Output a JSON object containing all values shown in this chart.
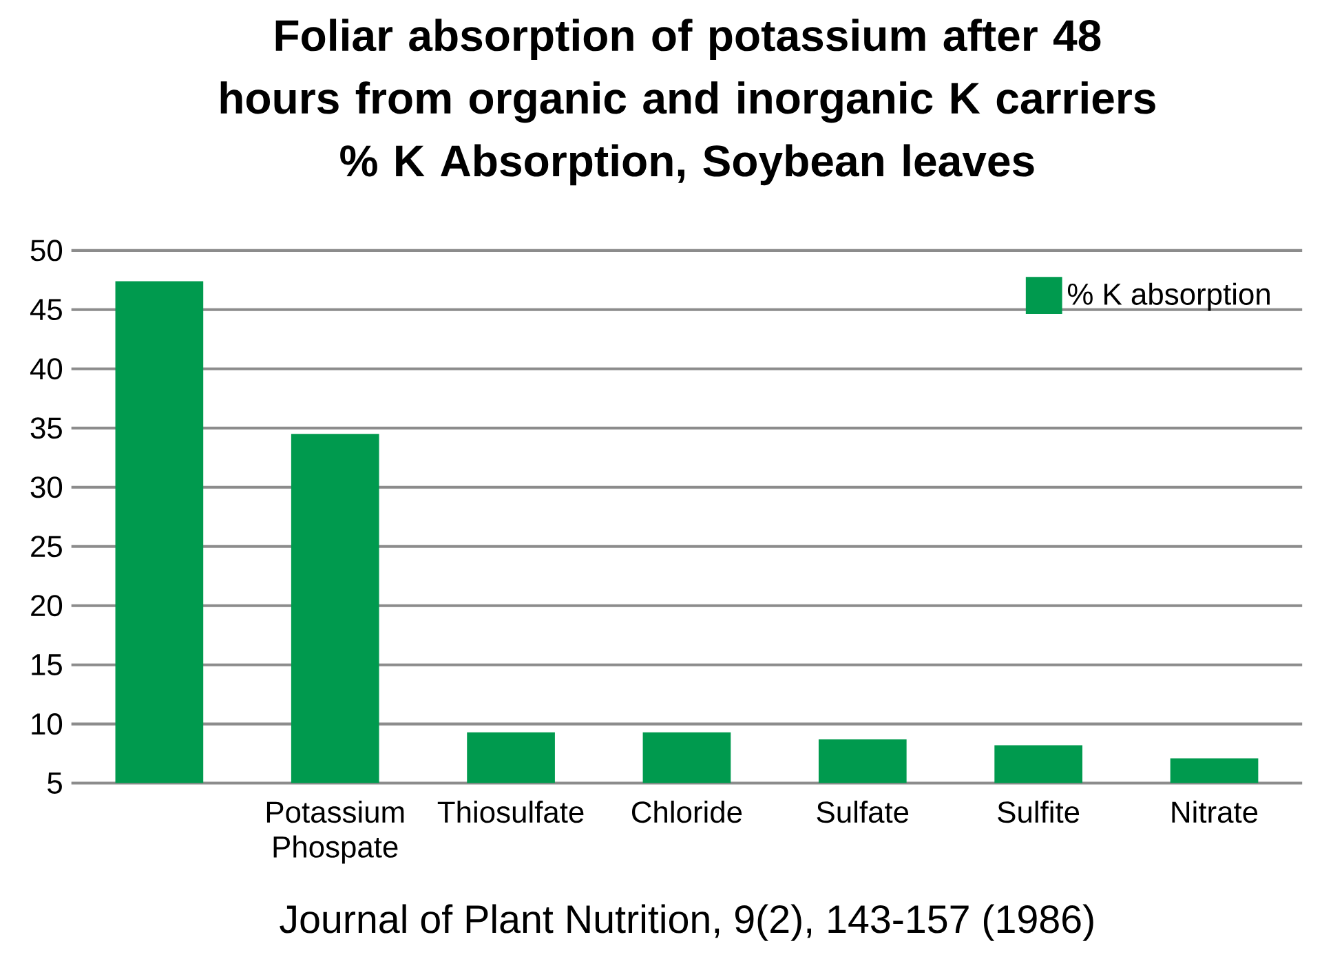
{
  "chart_data": {
    "type": "bar",
    "title": "Foliar absorption of potassium after 48 hours from organic and inorganic K carriers",
    "subtitle": "% K Absorption, Soybean leaves",
    "categories": [
      null,
      "Potassium Phospate",
      "Thiosulfate",
      "Chloride",
      "Sulfate",
      "Sulfite",
      "Nitrate"
    ],
    "series": [
      {
        "name": "% K absorption",
        "color": "#009a4e",
        "values": [
          47.4,
          34.5,
          9.3,
          9.3,
          8.7,
          8.2,
          7.1
        ]
      }
    ],
    "ylim": [
      5,
      50
    ],
    "yticks": [
      5,
      10,
      15,
      20,
      25,
      30,
      35,
      40,
      45,
      50
    ],
    "grid": "y",
    "legend": "top right",
    "annotations": [
      "Journal of Plant Nutrition, 9(2), 143-157 (1986)"
    ]
  }
}
